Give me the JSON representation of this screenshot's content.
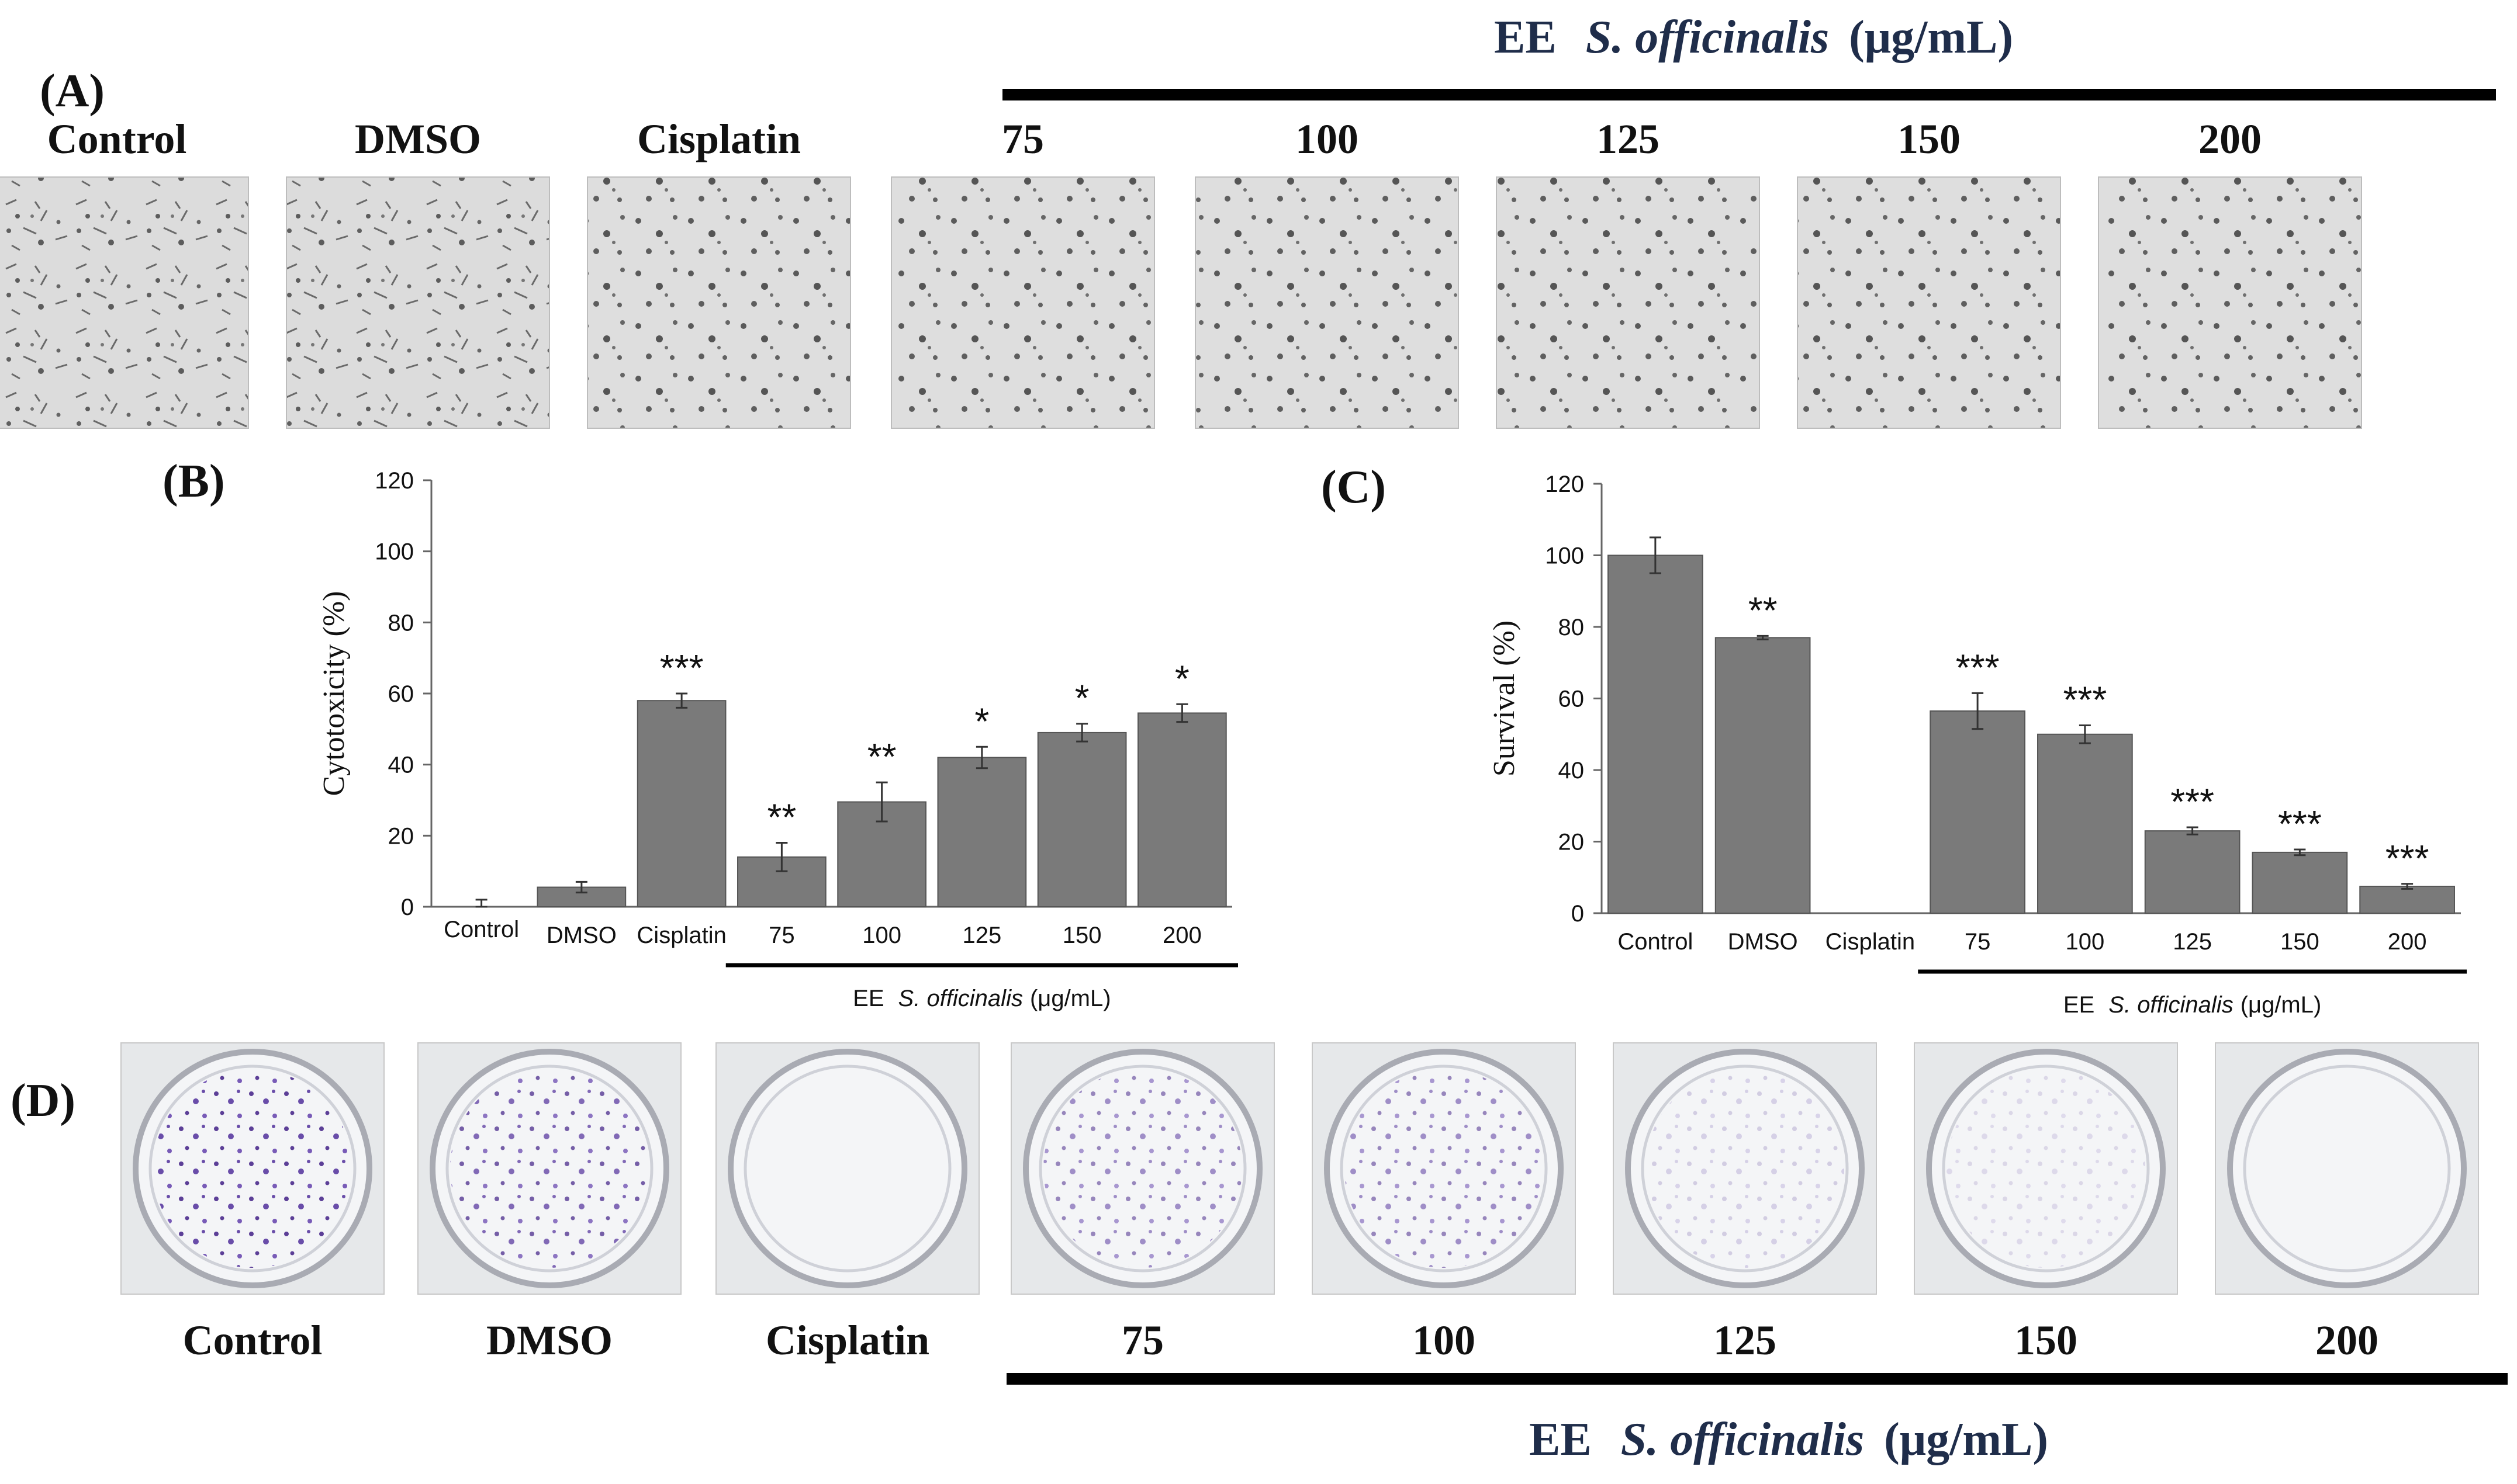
{
  "panel_labels": {
    "a": "(A)",
    "b": "(B)",
    "c": "(C)",
    "d": "(D)"
  },
  "treatment_label": {
    "prefix": "EE",
    "species": "S. officinalis",
    "unit": "(μg/mL)"
  },
  "panel_a": {
    "description_note": "",
    "image_labels": [
      "Control",
      "DMSO",
      "Cisplatin",
      "75",
      "100",
      "125",
      "150",
      "200"
    ]
  },
  "panel_d": {
    "image_labels": [
      "Control",
      "DMSO",
      "Cisplatin",
      "75",
      "100",
      "125",
      "150",
      "200"
    ]
  },
  "colors": {
    "bar": "#7a7a7a",
    "bar_stroke": "#555555",
    "axis": "#666666",
    "text": "#111111",
    "stain": "#4b2b8c",
    "micro_bg": "#d9d9d9"
  },
  "chart_data": [
    {
      "type": "bar",
      "panel": "B",
      "title": "",
      "xlabel": "",
      "ylabel": "Cytotoxicity (%)",
      "categories": [
        "Control",
        "DMSO",
        "Cisplatin",
        "75",
        "100",
        "125",
        "150",
        "200"
      ],
      "values": [
        0,
        5.5,
        58,
        14,
        29.5,
        42,
        49,
        54.5
      ],
      "errors": [
        2,
        1.5,
        2,
        4,
        5.5,
        3,
        2.5,
        2.5
      ],
      "significance": [
        "",
        "",
        "***",
        "**",
        "**",
        "*",
        "*",
        "*"
      ],
      "ylim": [
        0,
        120
      ],
      "yticks": [
        0,
        20,
        40,
        60,
        80,
        100,
        120
      ],
      "group_underline": {
        "from": "75",
        "to": "200"
      }
    },
    {
      "type": "bar",
      "panel": "C",
      "title": "",
      "xlabel": "",
      "ylabel": "Survival (%)",
      "categories": [
        "Control",
        "DMSO",
        "Cisplatin",
        "75",
        "100",
        "125",
        "150",
        "200"
      ],
      "values": [
        100,
        77,
        0,
        56.5,
        50,
        23,
        17,
        7.5
      ],
      "errors": [
        5,
        0.5,
        0,
        5,
        2.5,
        1,
        0.8,
        0.7
      ],
      "significance": [
        "",
        "**",
        "",
        "***",
        "***",
        "***",
        "***",
        "***"
      ],
      "ylim": [
        0,
        120
      ],
      "yticks": [
        0,
        20,
        40,
        60,
        80,
        100,
        120
      ],
      "group_underline": {
        "from": "75",
        "to": "200"
      }
    }
  ]
}
